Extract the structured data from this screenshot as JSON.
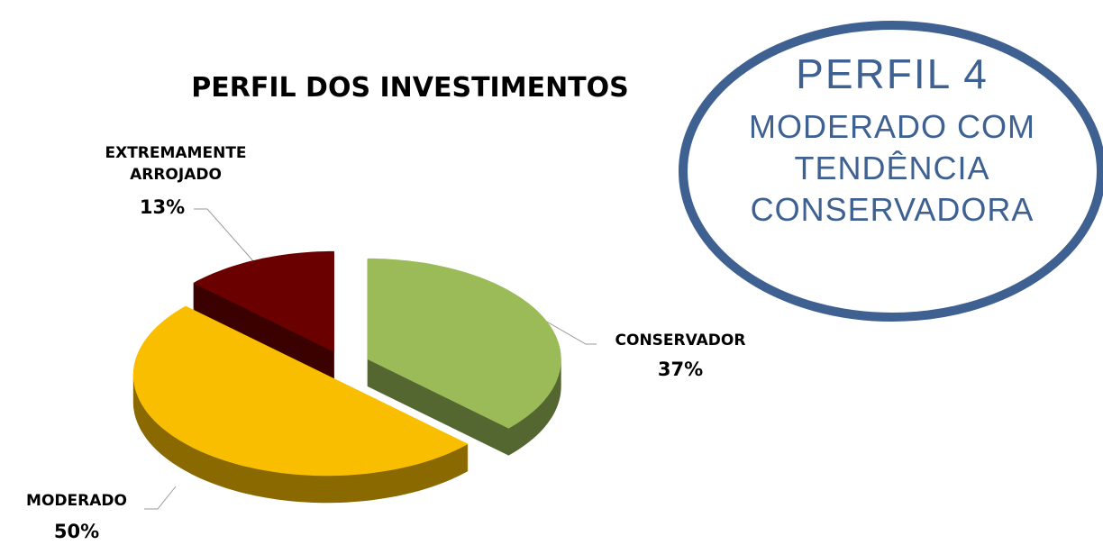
{
  "chart_data": {
    "type": "pie",
    "title": "PERFIL DOS INVESTIMENTOS",
    "categories": [
      "CONSERVADOR",
      "MODERADO",
      "EXTREMAMENTE ARROJADO"
    ],
    "values": [
      37,
      50,
      13
    ],
    "value_labels": [
      "37%",
      "50%",
      "13%"
    ],
    "colors": [
      "#9bbb59",
      "#f9be00",
      "#6b0000"
    ],
    "annotations": [
      "PERFIL 4",
      "MODERADO COM TENDÊNCIA CONSERVADORA"
    ]
  }
}
